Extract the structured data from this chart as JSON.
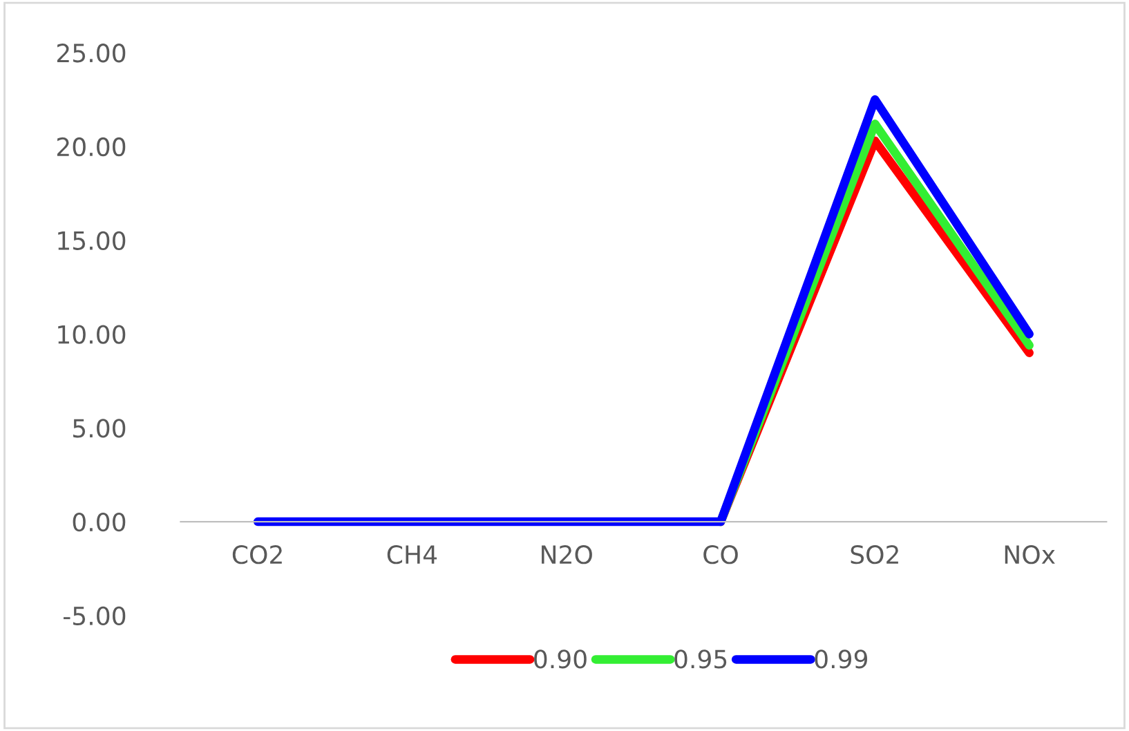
{
  "chart_data": {
    "type": "line",
    "categories": [
      "CO2",
      "CH4",
      "N2O",
      "CO",
      "SO2",
      "NOx"
    ],
    "series": [
      {
        "name": "0.90",
        "color": "#ff0000",
        "values": [
          null,
          null,
          null,
          0,
          20.3,
          9.0
        ]
      },
      {
        "name": "0.95",
        "color": "#33ee33",
        "values": [
          null,
          null,
          null,
          0,
          21.2,
          9.4
        ]
      },
      {
        "name": "0.99",
        "color": "#0000ff",
        "values": [
          0,
          0,
          0,
          0,
          22.5,
          10.0
        ]
      }
    ],
    "ylim": [
      -5,
      25
    ],
    "yticks": [
      {
        "value": -5,
        "label": "-5.00"
      },
      {
        "value": 0,
        "label": "0.00"
      },
      {
        "value": 5,
        "label": "5.00"
      },
      {
        "value": 10,
        "label": "10.00"
      },
      {
        "value": 15,
        "label": "15.00"
      },
      {
        "value": 20,
        "label": "20.00"
      },
      {
        "value": 25,
        "label": "25.00"
      }
    ],
    "grid": false,
    "legend": "bottom",
    "marker": "none",
    "line_style": "solid"
  }
}
